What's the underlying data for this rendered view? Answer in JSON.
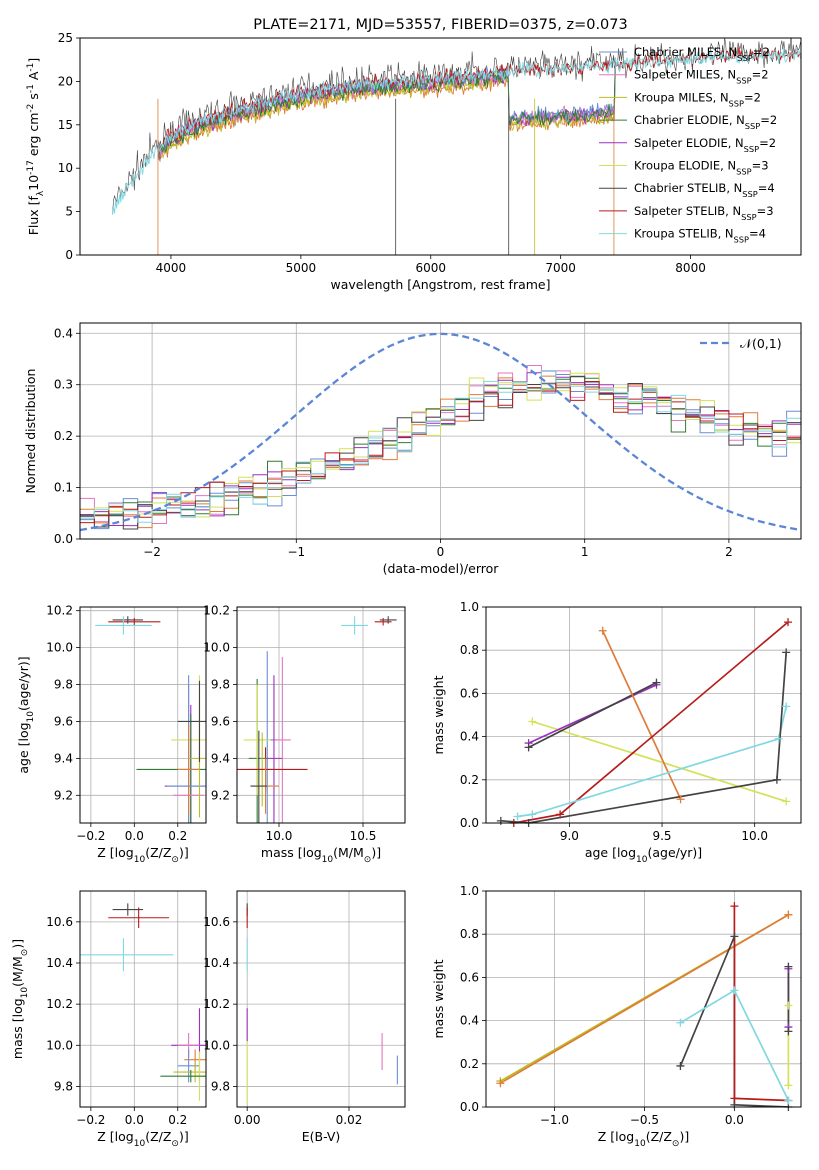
{
  "colors": {
    "chabrier_miles": "#6b8ed6",
    "salpeter_miles": "#e377c2",
    "kroupa_miles": "#bcbd22",
    "chabrier_elodie": "#2e7d32",
    "salpeter_elodie": "#9b30c0",
    "kroupa_elodie": "#d4e157",
    "chabrier_stelib": "#444444",
    "salpeter_stelib": "#b71c1c",
    "kroupa_stelib": "#80d8e0",
    "orange": "#e07b39",
    "gauss": "#5b86d6",
    "grid": "#b0b0b0"
  },
  "chart_data": [
    {
      "type": "line",
      "title": "PLATE=2171, MJD=53557, FIBERID=0375, z=0.073",
      "xlabel": "wavelength [Angstrom, rest frame]",
      "ylabel": "Flux [f$_\\lambda$10$^{-17}$ erg cm$^{-2}$ s$^{-1}$ A$^{-1}$]",
      "xlim": [
        3300,
        8850
      ],
      "ylim": [
        0,
        25
      ],
      "xticks": [
        "4000",
        "5000",
        "6000",
        "7000",
        "8000"
      ],
      "yticks": [
        "0",
        "5",
        "10",
        "15",
        "20",
        "25"
      ],
      "grid": false,
      "legend_position": "right",
      "legend": [
        "Chabrier MILES, N$_{SSP}$=2",
        "Salpeter MILES, N$_{SSP}$=2",
        "Kroupa MILES, N$_{SSP}$=2",
        "Chabrier ELODIE, N$_{SSP}$=2",
        "Salpeter ELODIE, N$_{SSP}$=2",
        "Kroupa ELODIE, N$_{SSP}$=3",
        "Chabrier STELIB, N$_{SSP}$=4",
        "Salpeter STELIB, N$_{SSP}$=3",
        "Kroupa STELIB, N$_{SSP}$=4"
      ],
      "continuum_x": [
        3550,
        3800,
        4000,
        4200,
        4500,
        5000,
        5500,
        6000,
        6500,
        7000,
        7500,
        8000,
        8500,
        8850
      ],
      "continuum_y": [
        5,
        10.5,
        13.5,
        15,
        16.5,
        18.5,
        19.5,
        20,
        20.8,
        21.3,
        21.8,
        22.3,
        22.8,
        23
      ]
    },
    {
      "type": "step",
      "xlabel": "(data-model)/error",
      "ylabel": "Normed distribution",
      "xlim": [
        -2.5,
        2.5
      ],
      "ylim": [
        0,
        0.42
      ],
      "xticks": [
        "−2",
        "−1",
        "0",
        "1",
        "2"
      ],
      "yticks": [
        "0.0",
        "0.1",
        "0.2",
        "0.3",
        "0.4"
      ],
      "grid": true,
      "legend": [
        "$\\mathcal{N}(0,1)$"
      ],
      "legend_position": "top-right",
      "envelope_x": [
        -2.5,
        -2.0,
        -1.5,
        -1.0,
        -0.5,
        0.0,
        0.5,
        1.0,
        1.5,
        2.0,
        2.5
      ],
      "envelope_y": [
        0.04,
        0.06,
        0.08,
        0.12,
        0.17,
        0.24,
        0.3,
        0.3,
        0.27,
        0.22,
        0.2
      ]
    },
    {
      "type": "scatter",
      "xlabel": "Z [log$_{10}$(Z/Z$_\\odot$)]",
      "ylabel": "age  [log$_{10}$(age/yr)]",
      "xlim": [
        -0.25,
        0.33
      ],
      "ylim": [
        9.05,
        10.22
      ],
      "xticks": [
        "−0.2",
        "0.0",
        "0.2"
      ],
      "yticks": [
        "9.2",
        "9.4",
        "9.6",
        "9.8",
        "10.0",
        "10.2"
      ],
      "points": [
        {
          "c": "chabrier_stelib",
          "x": -0.03,
          "y": 10.15,
          "xe": 0.07,
          "ye": 0.02
        },
        {
          "c": "salpeter_stelib",
          "x": 0.0,
          "y": 10.14,
          "xe": 0.12,
          "ye": 0.02
        },
        {
          "c": "kroupa_stelib",
          "x": -0.05,
          "y": 10.12,
          "xe": 0.13,
          "ye": 0.05
        },
        {
          "c": "kroupa_elodie",
          "x": 0.3,
          "y": 9.5,
          "xe": 0.13,
          "ye": 0.35
        },
        {
          "c": "salpeter_elodie",
          "x": 0.26,
          "y": 9.25,
          "xe": 0.12,
          "ye": 0.44
        },
        {
          "c": "chabrier_elodie",
          "x": 0.26,
          "y": 9.34,
          "xe": 0.25,
          "ye": 0.3
        },
        {
          "c": "salpeter_miles",
          "x": 0.25,
          "y": 9.2,
          "xe": 0.07,
          "ye": 0.6
        },
        {
          "c": "chabrier_miles",
          "x": 0.25,
          "y": 9.25,
          "xe": 0.1,
          "ye": 0.6
        },
        {
          "c": "kroupa_miles",
          "x": 0.3,
          "y": 9.4,
          "xe": 0.05,
          "ye": 0.32
        },
        {
          "c": "orange",
          "x": 0.25,
          "y": 9.34,
          "xe": 0.05,
          "ye": 0.24
        },
        {
          "c": "chabrier_stelib",
          "x": 0.3,
          "y": 9.6,
          "xe": 0.1,
          "ye": 0.22
        }
      ]
    },
    {
      "type": "scatter",
      "xlabel": "mass [log$_{10}$(M/M$_\\odot$)]",
      "xlim": [
        9.75,
        10.75
      ],
      "ylim": [
        9.05,
        10.22
      ],
      "xticks": [
        "10.0",
        "10.5"
      ],
      "yticks": [
        "9.2",
        "9.4",
        "9.6",
        "9.8",
        "10.0",
        "10.2"
      ],
      "points": [
        {
          "c": "chabrier_stelib",
          "x": 10.65,
          "y": 10.15,
          "xe": 0.05,
          "ye": 0.02
        },
        {
          "c": "salpeter_stelib",
          "x": 10.62,
          "y": 10.14,
          "xe": 0.05,
          "ye": 0.02
        },
        {
          "c": "kroupa_stelib",
          "x": 10.45,
          "y": 10.12,
          "xe": 0.08,
          "ye": 0.05
        },
        {
          "c": "chabrier_miles",
          "x": 9.93,
          "y": 9.5,
          "xe": 0.06,
          "ye": 0.48
        },
        {
          "c": "salpeter_miles",
          "x": 10.02,
          "y": 9.5,
          "xe": 0.05,
          "ye": 0.45
        },
        {
          "c": "salpeter_elodie",
          "x": 9.97,
          "y": 9.4,
          "xe": 0.05,
          "ye": 0.45
        },
        {
          "c": "chabrier_elodie",
          "x": 9.87,
          "y": 9.4,
          "xe": 0.05,
          "ye": 0.43
        },
        {
          "c": "kroupa_elodie",
          "x": 9.87,
          "y": 9.5,
          "xe": 0.08,
          "ye": 0.3
        },
        {
          "c": "kroupa_miles",
          "x": 9.9,
          "y": 9.34,
          "xe": 0.08,
          "ye": 0.2
        },
        {
          "c": "salpeter_stelib",
          "x": 9.92,
          "y": 9.34,
          "xe": 0.25,
          "ye": 0.12
        },
        {
          "c": "orange",
          "x": 9.92,
          "y": 9.25,
          "xe": 0.08,
          "ye": 0.15
        },
        {
          "c": "chabrier_stelib",
          "x": 9.88,
          "y": 9.25,
          "xe": 0.05,
          "ye": 0.3
        }
      ]
    },
    {
      "type": "line",
      "xlabel": "age  [log$_{10}$(age/yr)]",
      "ylabel": "mass weight",
      "xlim": [
        8.55,
        10.25
      ],
      "ylim": [
        0,
        1
      ],
      "xticks": [
        "9.0",
        "9.5",
        "10.0"
      ],
      "yticks": [
        "0.0",
        "0.2",
        "0.4",
        "0.6",
        "0.8",
        "1.0"
      ],
      "series": [
        {
          "c": "kroupa_elodie",
          "x": [
            8.8,
            10.17
          ],
          "y": [
            0.47,
            0.1
          ]
        },
        {
          "c": "salpeter_elodie",
          "x": [
            8.78,
            9.47
          ],
          "y": [
            0.37,
            0.64
          ]
        },
        {
          "c": "chabrier_stelib",
          "x": [
            8.78,
            9.47
          ],
          "y": [
            0.35,
            0.65
          ]
        },
        {
          "c": "orange",
          "x": [
            9.18,
            9.6
          ],
          "y": [
            0.89,
            0.11
          ]
        },
        {
          "c": "salpeter_stelib",
          "x": [
            8.7,
            8.95,
            10.18
          ],
          "y": [
            0.0,
            0.04,
            0.93
          ]
        },
        {
          "c": "kroupa_stelib",
          "x": [
            8.72,
            8.8,
            10.13,
            10.17
          ],
          "y": [
            0.03,
            0.04,
            0.39,
            0.54
          ]
        },
        {
          "c": "chabrier_stelib",
          "x": [
            8.63,
            8.78,
            10.12,
            10.17
          ],
          "y": [
            0.01,
            0.0,
            0.2,
            0.79
          ]
        }
      ]
    },
    {
      "type": "scatter",
      "xlabel": "Z [log$_{10}$(Z/Z$_\\odot$)]",
      "ylabel": "mass [log$_{10}$(M/M$_\\odot$)]",
      "xlim": [
        -0.25,
        0.33
      ],
      "ylim": [
        9.7,
        10.75
      ],
      "xticks": [
        "−0.2",
        "0.0",
        "0.2"
      ],
      "yticks": [
        "9.8",
        "10.0",
        "10.2",
        "10.4",
        "10.6"
      ],
      "points": [
        {
          "c": "chabrier_stelib",
          "x": -0.03,
          "y": 10.66,
          "xe": 0.07,
          "ye": 0.03
        },
        {
          "c": "salpeter_stelib",
          "x": 0.02,
          "y": 10.62,
          "xe": 0.14,
          "ye": 0.05
        },
        {
          "c": "kroupa_stelib",
          "x": -0.05,
          "y": 10.44,
          "xe": 0.23,
          "ye": 0.08
        },
        {
          "c": "salpeter_elodie",
          "x": 0.3,
          "y": 10.0,
          "xe": 0.13,
          "ye": 0.18
        },
        {
          "c": "salpeter_miles",
          "x": 0.25,
          "y": 10.0,
          "xe": 0.05,
          "ye": 0.06
        },
        {
          "c": "orange",
          "x": 0.28,
          "y": 9.93,
          "xe": 0.05,
          "ye": 0.05
        },
        {
          "c": "chabrier_miles",
          "x": 0.25,
          "y": 9.9,
          "xe": 0.05,
          "ye": 0.08
        },
        {
          "c": "kroupa_miles",
          "x": 0.28,
          "y": 9.87,
          "xe": 0.1,
          "ye": 0.05
        },
        {
          "c": "kroupa_elodie",
          "x": 0.3,
          "y": 9.85,
          "xe": 0.05,
          "ye": 0.12
        },
        {
          "c": "chabrier_elodie",
          "x": 0.26,
          "y": 9.85,
          "xe": 0.14,
          "ye": 0.03
        }
      ]
    },
    {
      "type": "scatter",
      "xlabel": "E(B-V)",
      "xlim": [
        -0.002,
        0.031
      ],
      "ylim": [
        9.7,
        10.75
      ],
      "xticks": [
        "0.00",
        "0.02"
      ],
      "yticks": [
        "9.8",
        "10.0",
        "10.2",
        "10.4",
        "10.6"
      ],
      "points": [
        {
          "c": "chabrier_stelib",
          "x": 0.0,
          "y": 10.66,
          "xe": 0.0,
          "ye": 0.03
        },
        {
          "c": "salpeter_stelib",
          "x": 0.0,
          "y": 10.62,
          "xe": 0.0,
          "ye": 0.05
        },
        {
          "c": "kroupa_stelib",
          "x": 0.0,
          "y": 10.44,
          "xe": 0.0,
          "ye": 0.08
        },
        {
          "c": "salpeter_elodie",
          "x": 0.0,
          "y": 10.1,
          "xe": 0.0,
          "ye": 0.08
        },
        {
          "c": "kroupa_elodie",
          "x": 0.0,
          "y": 9.87,
          "xe": 0.0,
          "ye": 0.15
        },
        {
          "c": "salpeter_miles",
          "x": 0.0265,
          "y": 9.97,
          "xe": 0.0,
          "ye": 0.09
        },
        {
          "c": "chabrier_miles",
          "x": 0.0295,
          "y": 9.88,
          "xe": 0.0,
          "ye": 0.07
        }
      ]
    },
    {
      "type": "line",
      "xlabel": "Z [log$_{10}$(Z/Z$_\\odot$)]",
      "ylabel": "mass weight",
      "xlim": [
        -1.38,
        0.37
      ],
      "ylim": [
        0,
        1
      ],
      "xticks": [
        "−1.0",
        "−0.5",
        "0.0"
      ],
      "yticks": [
        "0.0",
        "0.2",
        "0.4",
        "0.6",
        "0.8",
        "1.0"
      ],
      "series": [
        {
          "c": "kroupa_miles",
          "x": [
            -1.3,
            0.3
          ],
          "y": [
            0.12,
            0.89
          ]
        },
        {
          "c": "orange",
          "x": [
            -1.3,
            0.3
          ],
          "y": [
            0.11,
            0.89
          ]
        },
        {
          "c": "chabrier_stelib",
          "x": [
            -0.3,
            0.0,
            0.0,
            0.3
          ],
          "y": [
            0.19,
            0.79,
            0.01,
            0.0
          ]
        },
        {
          "c": "salpeter_stelib",
          "x": [
            0.0,
            0.0,
            0.3
          ],
          "y": [
            0.93,
            0.04,
            0.03
          ]
        },
        {
          "c": "kroupa_stelib",
          "x": [
            -0.3,
            0.0,
            0.3
          ],
          "y": [
            0.39,
            0.54,
            0.03
          ]
        },
        {
          "c": "salpeter_elodie",
          "x": [
            0.3,
            0.3
          ],
          "y": [
            0.37,
            0.64
          ]
        },
        {
          "c": "kroupa_elodie",
          "x": [
            0.3,
            0.3
          ],
          "y": [
            0.1,
            0.47
          ]
        },
        {
          "c": "chabrier_stelib",
          "x": [
            0.3,
            0.3
          ],
          "y": [
            0.35,
            0.65
          ]
        }
      ]
    }
  ]
}
